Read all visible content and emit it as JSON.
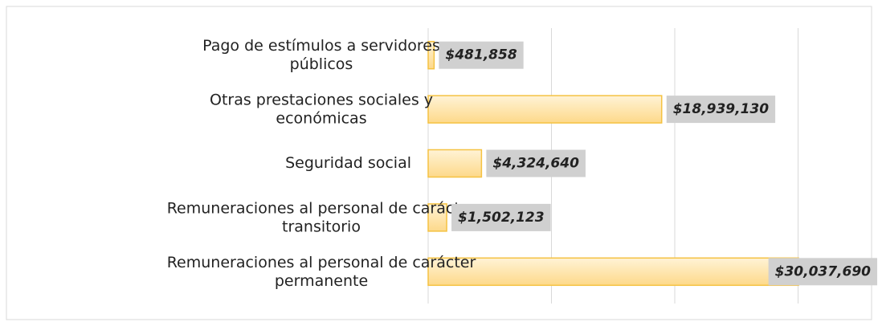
{
  "chart_data": {
    "type": "hbar",
    "categories": [
      "Pago de estímulos a servidores públicos",
      "Otras prestaciones sociales y económicas",
      "Seguridad social",
      "Remuneraciones al personal de carácter transitorio",
      "Remuneraciones al personal de carácter permanente"
    ],
    "values": [
      481858,
      18939130,
      4324640,
      1502123,
      30037690
    ],
    "value_labels": [
      "$481,858",
      "$18,939,130",
      "$4,324,640",
      "$1,502,123",
      "$30,037,690"
    ],
    "color": "#fdd98a",
    "xlim": [
      0,
      36000000
    ],
    "xticks": [
      0,
      10000000,
      20000000,
      30000000
    ],
    "grid": true
  }
}
